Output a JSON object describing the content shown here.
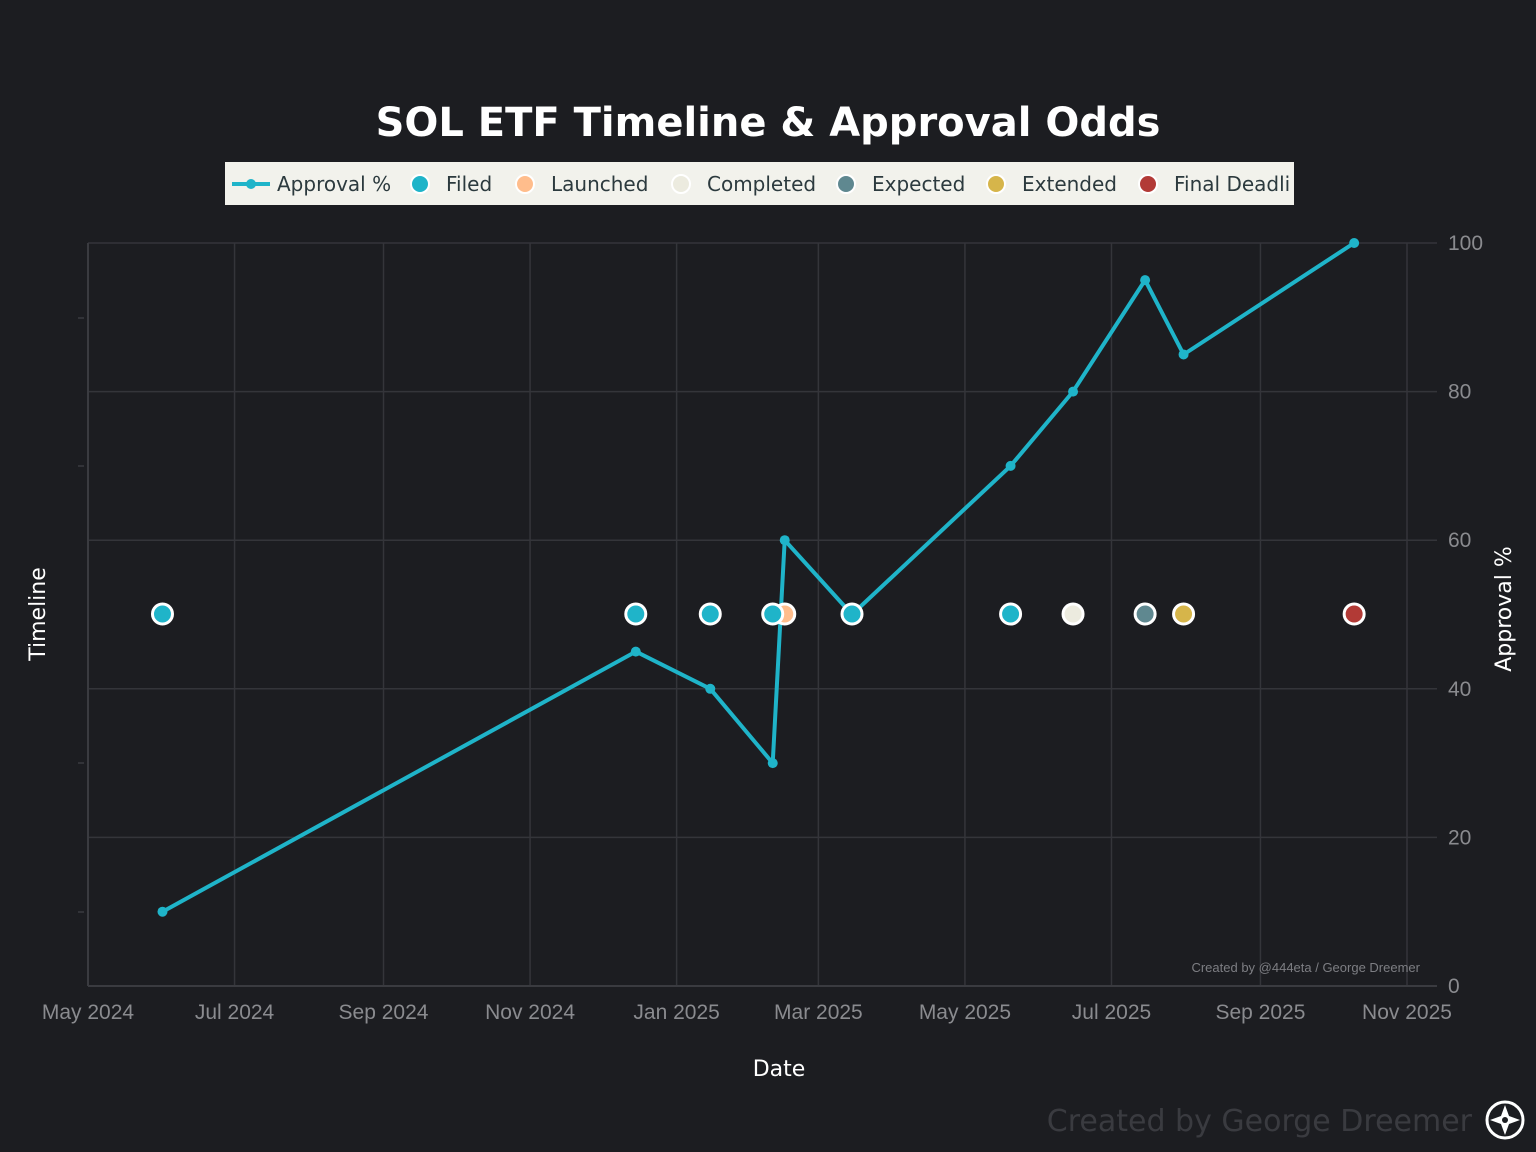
{
  "chart_data": {
    "type": "line",
    "title": "SOL ETF Timeline & Approval Odds",
    "xlabel": "Date",
    "ylabel_left": "Timeline",
    "ylabel_right": "Approval %",
    "x_range": [
      "2024-05-01",
      "2025-11-01"
    ],
    "x_ticks": [
      {
        "date": "2024-05-01",
        "label": "May 2024"
      },
      {
        "date": "2024-07-01",
        "label": "Jul 2024"
      },
      {
        "date": "2024-09-01",
        "label": "Sep 2024"
      },
      {
        "date": "2024-11-01",
        "label": "Nov 2024"
      },
      {
        "date": "2025-01-01",
        "label": "Jan 2025"
      },
      {
        "date": "2025-03-01",
        "label": "Mar 2025"
      },
      {
        "date": "2025-05-01",
        "label": "May 2025"
      },
      {
        "date": "2025-07-01",
        "label": "Jul 2025"
      },
      {
        "date": "2025-09-01",
        "label": "Sep 2025"
      },
      {
        "date": "2025-11-01",
        "label": "Nov 2025"
      }
    ],
    "y_right_range": [
      0,
      100
    ],
    "y_right_ticks": [
      0,
      20,
      40,
      60,
      80,
      100
    ],
    "grid": true,
    "legend_position": "top-center",
    "approval_series": {
      "name": "Approval %",
      "color": "#1fb4c9",
      "points": [
        {
          "date": "2024-06-01",
          "value": 10
        },
        {
          "date": "2024-12-15",
          "value": 45
        },
        {
          "date": "2025-01-15",
          "value": 40
        },
        {
          "date": "2025-02-10",
          "value": 30
        },
        {
          "date": "2025-02-15",
          "value": 60
        },
        {
          "date": "2025-03-15",
          "value": 50
        },
        {
          "date": "2025-05-20",
          "value": 70
        },
        {
          "date": "2025-06-15",
          "value": 80
        },
        {
          "date": "2025-07-15",
          "value": 95
        },
        {
          "date": "2025-07-31",
          "value": 85
        },
        {
          "date": "2025-10-10",
          "value": 100
        }
      ]
    },
    "event_categories": [
      {
        "name": "Filed",
        "color": "#1fb4c9"
      },
      {
        "name": "Launched",
        "color": "#ffbd8c"
      },
      {
        "name": "Completed",
        "color": "#ecebdf"
      },
      {
        "name": "Expected",
        "color": "#5f8890"
      },
      {
        "name": "Extended",
        "color": "#d6b54a"
      },
      {
        "name": "Final Deadli",
        "color": "#b23a36"
      }
    ],
    "events": [
      {
        "date": "2024-06-01",
        "category": "Filed"
      },
      {
        "date": "2024-12-15",
        "category": "Filed"
      },
      {
        "date": "2025-01-15",
        "category": "Filed"
      },
      {
        "date": "2025-02-15",
        "category": "Launched"
      },
      {
        "date": "2025-02-10",
        "category": "Filed"
      },
      {
        "date": "2025-03-15",
        "category": "Filed"
      },
      {
        "date": "2025-05-20",
        "category": "Filed"
      },
      {
        "date": "2025-06-15",
        "category": "Completed"
      },
      {
        "date": "2025-07-15",
        "category": "Expected"
      },
      {
        "date": "2025-07-31",
        "category": "Extended"
      },
      {
        "date": "2025-10-10",
        "category": "Final Deadli"
      }
    ],
    "annotation": "Created by @444eta / George Dreemer"
  },
  "watermark": "Created by George Dreemer",
  "watermark_icon": "compass-star-icon"
}
